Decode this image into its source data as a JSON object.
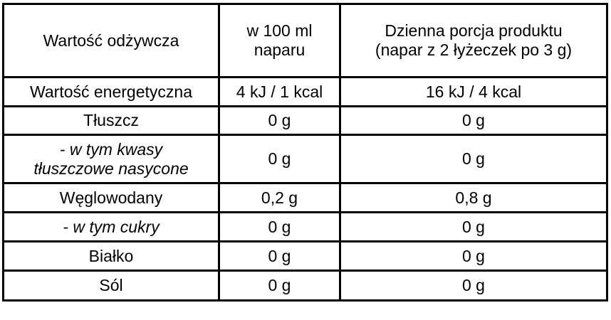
{
  "header": {
    "col1": "Wartość odżywcza",
    "col2_line1": "w 100 ml",
    "col2_line2": "naparu",
    "col3_line1": "Dzienna porcja produktu",
    "col3_line2": "(napar z 2 łyżeczek po 3 g)"
  },
  "rows": [
    {
      "label": "Wartość energetyczna",
      "per100": "4 kJ / 1 kcal",
      "daily": "16 kJ / 4 kcal"
    },
    {
      "label": "Tłuszcz",
      "per100": "0 g",
      "daily": "0 g"
    },
    {
      "label_line1": "- w tym kwasy",
      "label_line2": "tłuszczowe nasycone",
      "per100": "0 g",
      "daily": "0 g"
    },
    {
      "label": "Węglowodany",
      "per100": "0,2 g",
      "daily": "0,8 g"
    },
    {
      "label": "- w tym cukry",
      "per100": "0 g",
      "daily": "0 g"
    },
    {
      "label": "Białko",
      "per100": "0 g",
      "daily": "0 g"
    },
    {
      "label": "Sól",
      "per100": "0 g",
      "daily": "0 g"
    }
  ]
}
